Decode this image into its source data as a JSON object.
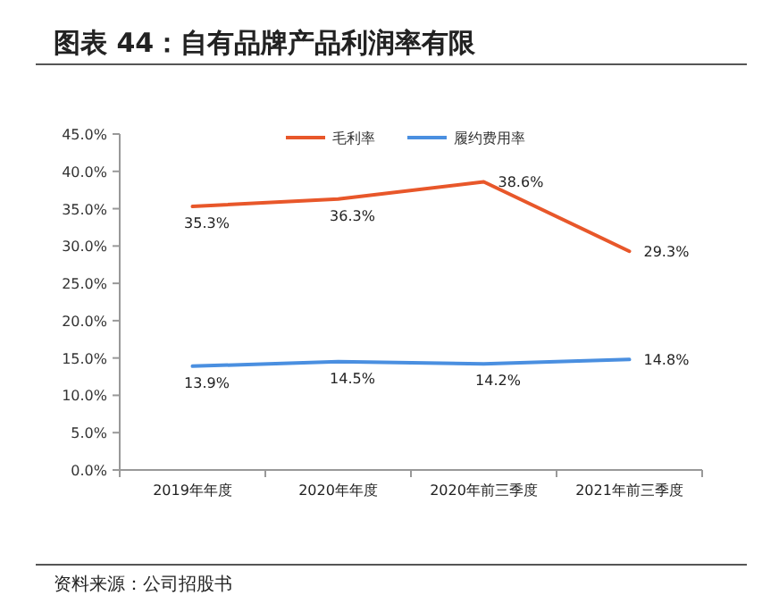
{
  "chart_data": {
    "type": "line",
    "title": "图表 44：自有品牌产品利润率有限",
    "categories": [
      "2019年年度",
      "2020年年度",
      "2020年前三季度",
      "2021年前三季度"
    ],
    "series": [
      {
        "name": "毛利率",
        "color": "#e8572a",
        "values": [
          35.3,
          36.3,
          38.6,
          29.3
        ],
        "value_labels": [
          "35.3%",
          "36.3%",
          "38.6%",
          "29.3%"
        ]
      },
      {
        "name": "履约费用率",
        "color": "#4a8fe0",
        "values": [
          13.9,
          14.5,
          14.2,
          14.8
        ],
        "value_labels": [
          "13.9%",
          "14.5%",
          "14.2%",
          "14.8%"
        ]
      }
    ],
    "ylim": [
      0,
      45
    ],
    "yticks": [
      {
        "value": 0,
        "label": "0.0%"
      },
      {
        "value": 5,
        "label": "5.0%"
      },
      {
        "value": 10,
        "label": "10.0%"
      },
      {
        "value": 15,
        "label": "15.0%"
      },
      {
        "value": 20,
        "label": "20.0%"
      },
      {
        "value": 25,
        "label": "25.0%"
      },
      {
        "value": 30,
        "label": "30.0%"
      },
      {
        "value": 35,
        "label": "35.0%"
      },
      {
        "value": 40,
        "label": "40.0%"
      },
      {
        "value": 45,
        "label": "45.0%"
      }
    ],
    "legend": "top",
    "grid": false,
    "marker": "none",
    "line_style": "solid",
    "annotations": [
      "资料来源：公司招股书"
    ]
  }
}
